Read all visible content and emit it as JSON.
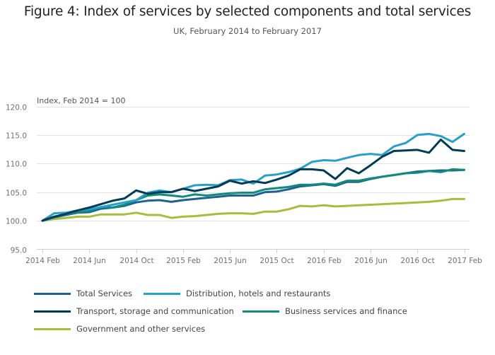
{
  "chart_data": {
    "type": "line",
    "title": "Figure 4: Index of services by selected components and total services",
    "subtitle": "UK, February 2014 to February 2017",
    "ylabel": "Index, Feb 2014 = 100",
    "xlabel": "",
    "ylim": [
      95,
      120
    ],
    "yticks": [
      "95.0",
      "100.0",
      "105.0",
      "110.0",
      "115.0",
      "120.0"
    ],
    "ytick_values": [
      95,
      100,
      105,
      110,
      115,
      120
    ],
    "xticks": [
      "2014 Feb",
      "2014 Jun",
      "2014 Oct",
      "2015 Feb",
      "2015 Jun",
      "2015 Oct",
      "2016 Feb",
      "2016 Jun",
      "2016 Oct",
      "2017 Feb"
    ],
    "xtick_months": [
      0,
      4,
      8,
      12,
      16,
      20,
      24,
      28,
      32,
      36
    ],
    "x_start": "2014 Feb",
    "x_end": "2017 Feb",
    "grid": true,
    "legend_position": "bottom",
    "series": [
      {
        "name": "Total Services",
        "color": "#206095",
        "values": [
          100.0,
          100.6,
          101.0,
          101.4,
          101.5,
          102.1,
          102.3,
          102.6,
          103.2,
          103.5,
          103.6,
          103.3,
          103.6,
          103.8,
          104.0,
          104.2,
          104.4,
          104.4,
          104.4,
          105.0,
          105.1,
          105.5,
          106.0,
          106.2,
          106.4,
          106.1,
          106.8,
          106.8,
          107.3,
          107.7,
          108.0,
          108.3,
          108.6,
          108.7,
          108.8,
          108.8,
          108.9
        ]
      },
      {
        "name": "Distribution, hotels and restaurants",
        "color": "#27a0cc",
        "values": [
          100.0,
          101.3,
          101.4,
          101.8,
          102.0,
          102.4,
          102.8,
          103.2,
          103.6,
          104.9,
          105.3,
          105.0,
          105.6,
          106.2,
          106.3,
          106.2,
          107.1,
          107.2,
          106.5,
          107.9,
          108.1,
          108.5,
          109.1,
          110.3,
          110.6,
          110.5,
          111.0,
          111.5,
          111.7,
          111.5,
          113.0,
          113.6,
          115.0,
          115.2,
          114.8,
          113.8,
          115.2
        ]
      },
      {
        "name": "Transport, storage and communication",
        "color": "#003c57",
        "values": [
          100.0,
          100.7,
          101.2,
          101.8,
          102.3,
          102.9,
          103.5,
          103.9,
          105.3,
          104.7,
          105.0,
          105.0,
          105.6,
          105.2,
          105.6,
          106.0,
          107.0,
          106.5,
          106.9,
          106.6,
          107.2,
          107.9,
          109.0,
          109.0,
          108.8,
          107.3,
          109.2,
          108.3,
          109.7,
          111.2,
          112.2,
          112.3,
          112.4,
          111.9,
          114.2,
          112.4,
          112.2
        ]
      },
      {
        "name": "Business services and finance",
        "color": "#118c7b",
        "values": [
          100.0,
          100.7,
          101.1,
          101.5,
          101.7,
          102.4,
          102.3,
          102.8,
          103.6,
          104.4,
          104.6,
          104.4,
          104.2,
          104.6,
          104.4,
          104.6,
          104.8,
          104.9,
          104.9,
          105.5,
          105.7,
          105.9,
          106.3,
          106.3,
          106.5,
          106.3,
          107.0,
          107.0,
          107.4,
          107.7,
          108.0,
          108.3,
          108.4,
          108.7,
          108.5,
          109.0,
          108.9
        ]
      },
      {
        "name": "Government and other services",
        "color": "#a8bd3a",
        "values": [
          100.0,
          100.3,
          100.5,
          100.7,
          100.7,
          101.1,
          101.1,
          101.1,
          101.4,
          101.0,
          101.0,
          100.5,
          100.7,
          100.8,
          101.0,
          101.2,
          101.3,
          101.3,
          101.2,
          101.6,
          101.6,
          102.0,
          102.6,
          102.5,
          102.7,
          102.5,
          102.6,
          102.7,
          102.8,
          102.9,
          103.0,
          103.1,
          103.2,
          103.3,
          103.5,
          103.8,
          103.8
        ]
      }
    ]
  }
}
